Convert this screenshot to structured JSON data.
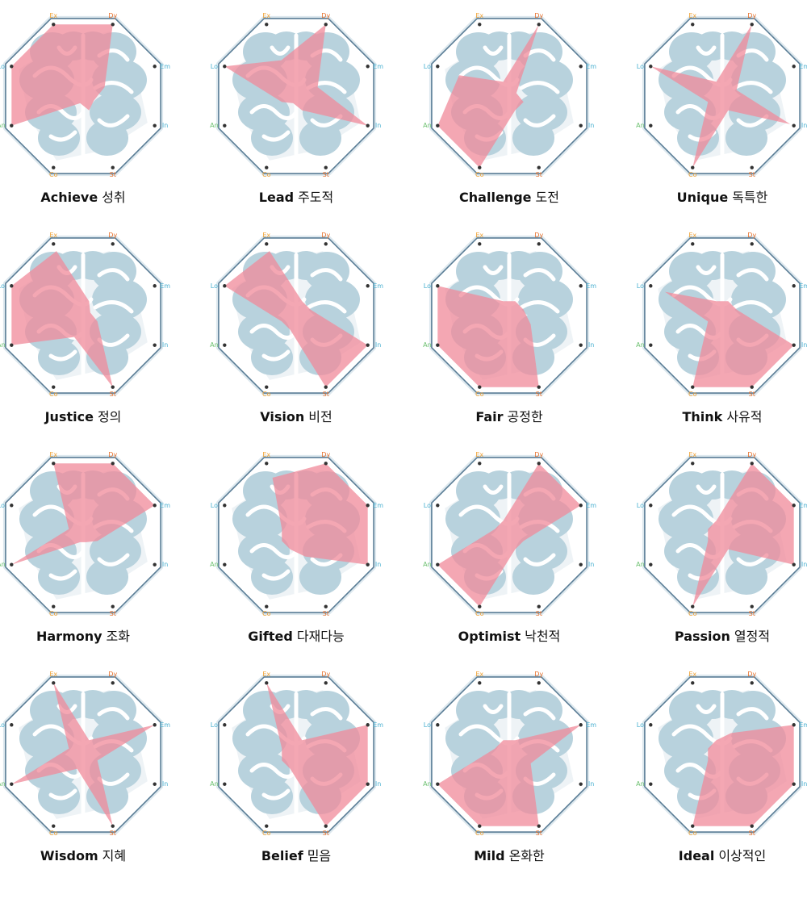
{
  "chart_data": [
    {
      "type": "radar",
      "title": "Achieve",
      "subtitle": "성취",
      "categories": [
        "Ex",
        "Dy",
        "Em",
        "In",
        "St",
        "Co",
        "An",
        "Lo"
      ],
      "category_colors": [
        "#f0a030",
        "#e8702a",
        "#4ab0d0",
        "#4ab0d0",
        "#e8702a",
        "#f0a030",
        "#6cc070",
        "#4ab0d0"
      ],
      "rlim": [
        0,
        1
      ],
      "color": "#f08a9a",
      "values": [
        1,
        1,
        0.3,
        0.15,
        0.2,
        0.1,
        1,
        1
      ]
    },
    {
      "type": "radar",
      "title": "Lead",
      "subtitle": "주도적",
      "categories": [
        "Ex",
        "Dy",
        "Em",
        "In",
        "St",
        "Co",
        "An",
        "Lo"
      ],
      "category_colors": [
        "#f0a030",
        "#e8702a",
        "#4ab0d0",
        "#4ab0d0",
        "#e8702a",
        "#f0a030",
        "#6cc070",
        "#4ab0d0"
      ],
      "rlim": [
        0,
        1
      ],
      "color": "#f08a9a",
      "values": [
        0.5,
        1,
        0.3,
        1,
        0.2,
        0.1,
        0.2,
        1
      ]
    },
    {
      "type": "radar",
      "title": "Challenge",
      "subtitle": "도전",
      "categories": [
        "Ex",
        "Dy",
        "Em",
        "In",
        "St",
        "Co",
        "An",
        "Lo"
      ],
      "category_colors": [
        "#f0a030",
        "#e8702a",
        "#4ab0d0",
        "#4ab0d0",
        "#e8702a",
        "#f0a030",
        "#6cc070",
        "#4ab0d0"
      ],
      "rlim": [
        0,
        1
      ],
      "color": "#f08a9a",
      "values": [
        0.2,
        1,
        0.1,
        0.2,
        0.2,
        1,
        1,
        0.7
      ]
    },
    {
      "type": "radar",
      "title": "Unique",
      "subtitle": "독특한",
      "categories": [
        "Ex",
        "Dy",
        "Em",
        "In",
        "St",
        "Co",
        "An",
        "Lo"
      ],
      "category_colors": [
        "#f0a030",
        "#e8702a",
        "#4ab0d0",
        "#4ab0d0",
        "#e8702a",
        "#f0a030",
        "#6cc070",
        "#4ab0d0"
      ],
      "rlim": [
        0,
        1
      ],
      "color": "#f08a9a",
      "values": [
        0.2,
        1,
        0.2,
        0.95,
        0.2,
        1,
        0.2,
        1
      ]
    },
    {
      "type": "radar",
      "title": "Justice",
      "subtitle": "정의",
      "categories": [
        "Ex",
        "Dy",
        "Em",
        "In",
        "St",
        "Co",
        "An",
        "Lo"
      ],
      "category_colors": [
        "#f0a030",
        "#e8702a",
        "#4ab0d0",
        "#4ab0d0",
        "#e8702a",
        "#f0a030",
        "#6cc070",
        "#4ab0d0"
      ],
      "rlim": [
        0,
        1
      ],
      "color": "#f08a9a",
      "values": [
        0.9,
        0.2,
        0.1,
        0.2,
        1,
        0.3,
        1,
        1
      ]
    },
    {
      "type": "radar",
      "title": "Vision",
      "subtitle": "비전",
      "categories": [
        "Ex",
        "Dy",
        "Em",
        "In",
        "St",
        "Co",
        "An",
        "Lo"
      ],
      "category_colors": [
        "#f0a030",
        "#e8702a",
        "#4ab0d0",
        "#4ab0d0",
        "#e8702a",
        "#f0a030",
        "#6cc070",
        "#4ab0d0"
      ],
      "rlim": [
        0,
        1
      ],
      "color": "#f08a9a",
      "values": [
        0.9,
        0.2,
        0.2,
        1,
        1,
        0.2,
        0.2,
        1
      ]
    },
    {
      "type": "radar",
      "title": "Fair",
      "subtitle": "공정한",
      "categories": [
        "Ex",
        "Dy",
        "Em",
        "In",
        "St",
        "Co",
        "An",
        "Lo"
      ],
      "category_colors": [
        "#f0a030",
        "#e8702a",
        "#4ab0d0",
        "#4ab0d0",
        "#e8702a",
        "#f0a030",
        "#6cc070",
        "#4ab0d0"
      ],
      "rlim": [
        0,
        1
      ],
      "color": "#f08a9a",
      "values": [
        0.2,
        0.2,
        0.2,
        0.3,
        1,
        1,
        1,
        1
      ]
    },
    {
      "type": "radar",
      "title": "Think",
      "subtitle": "사유적",
      "categories": [
        "Ex",
        "Dy",
        "Em",
        "In",
        "St",
        "Co",
        "An",
        "Lo"
      ],
      "category_colors": [
        "#f0a030",
        "#e8702a",
        "#4ab0d0",
        "#4ab0d0",
        "#e8702a",
        "#f0a030",
        "#6cc070",
        "#4ab0d0"
      ],
      "rlim": [
        0,
        1
      ],
      "color": "#f08a9a",
      "values": [
        0.2,
        0.2,
        0.2,
        1,
        1,
        1,
        0.2,
        0.8
      ]
    },
    {
      "type": "radar",
      "title": "Harmony",
      "subtitle": "조화",
      "categories": [
        "Ex",
        "Dy",
        "Em",
        "In",
        "St",
        "Co",
        "An",
        "Lo"
      ],
      "category_colors": [
        "#f0a030",
        "#e8702a",
        "#4ab0d0",
        "#4ab0d0",
        "#e8702a",
        "#f0a030",
        "#6cc070",
        "#4ab0d0"
      ],
      "rlim": [
        0,
        1
      ],
      "color": "#f08a9a",
      "values": [
        1,
        1,
        1,
        0.2,
        0.1,
        0.1,
        1,
        0.2
      ]
    },
    {
      "type": "radar",
      "title": "Gifted",
      "subtitle": "다재다능",
      "categories": [
        "Ex",
        "Dy",
        "Em",
        "In",
        "St",
        "Co",
        "An",
        "Lo"
      ],
      "category_colors": [
        "#f0a030",
        "#e8702a",
        "#4ab0d0",
        "#4ab0d0",
        "#e8702a",
        "#f0a030",
        "#6cc070",
        "#4ab0d0"
      ],
      "rlim": [
        0,
        1
      ],
      "color": "#f08a9a",
      "values": [
        0.8,
        1,
        1,
        1,
        0.3,
        0.2,
        0.2,
        0.2
      ]
    },
    {
      "type": "radar",
      "title": "Optimist",
      "subtitle": "낙천적",
      "categories": [
        "Ex",
        "Dy",
        "Em",
        "In",
        "St",
        "Co",
        "An",
        "Lo"
      ],
      "category_colors": [
        "#f0a030",
        "#e8702a",
        "#4ab0d0",
        "#4ab0d0",
        "#e8702a",
        "#f0a030",
        "#6cc070",
        "#4ab0d0"
      ],
      "rlim": [
        0,
        1
      ],
      "color": "#f08a9a",
      "values": [
        0.2,
        1,
        1,
        0.2,
        0.2,
        1,
        1,
        0.2
      ]
    },
    {
      "type": "radar",
      "title": "Passion",
      "subtitle": "열정적",
      "categories": [
        "Ex",
        "Dy",
        "Em",
        "In",
        "St",
        "Co",
        "An",
        "Lo"
      ],
      "category_colors": [
        "#f0a030",
        "#e8702a",
        "#4ab0d0",
        "#4ab0d0",
        "#e8702a",
        "#f0a030",
        "#6cc070",
        "#4ab0d0"
      ],
      "rlim": [
        0,
        1
      ],
      "color": "#f08a9a",
      "values": [
        0.2,
        1,
        1,
        1,
        0.2,
        1,
        0.2,
        0.2
      ]
    },
    {
      "type": "radar",
      "title": "Wisdom",
      "subtitle": "지혜",
      "categories": [
        "Ex",
        "Dy",
        "Em",
        "In",
        "St",
        "Co",
        "An",
        "Lo"
      ],
      "category_colors": [
        "#f0a030",
        "#e8702a",
        "#4ab0d0",
        "#4ab0d0",
        "#e8702a",
        "#f0a030",
        "#6cc070",
        "#4ab0d0"
      ],
      "rlim": [
        0,
        1
      ],
      "color": "#f08a9a",
      "values": [
        1,
        0.2,
        1,
        0.2,
        1,
        0.2,
        1,
        0.2
      ]
    },
    {
      "type": "radar",
      "title": "Belief",
      "subtitle": "믿음",
      "categories": [
        "Ex",
        "Dy",
        "Em",
        "In",
        "St",
        "Co",
        "An",
        "Lo"
      ],
      "category_colors": [
        "#f0a030",
        "#e8702a",
        "#4ab0d0",
        "#4ab0d0",
        "#e8702a",
        "#f0a030",
        "#6cc070",
        "#4ab0d0"
      ],
      "rlim": [
        0,
        1
      ],
      "color": "#f08a9a",
      "values": [
        1,
        0.2,
        1,
        1,
        1,
        0.2,
        0.2,
        0.2
      ]
    },
    {
      "type": "radar",
      "title": "Mild",
      "subtitle": "온화한",
      "categories": [
        "Ex",
        "Dy",
        "Em",
        "In",
        "St",
        "Co",
        "An",
        "Lo"
      ],
      "category_colors": [
        "#f0a030",
        "#e8702a",
        "#4ab0d0",
        "#4ab0d0",
        "#e8702a",
        "#f0a030",
        "#6cc070",
        "#4ab0d0"
      ],
      "rlim": [
        0,
        1
      ],
      "color": "#f08a9a",
      "values": [
        0.2,
        0.2,
        1,
        0.3,
        1,
        1,
        1,
        0.2
      ]
    },
    {
      "type": "radar",
      "title": "Ideal",
      "subtitle": "이상적인",
      "categories": [
        "Ex",
        "Dy",
        "Em",
        "In",
        "St",
        "Co",
        "An",
        "Lo"
      ],
      "category_colors": [
        "#f0a030",
        "#e8702a",
        "#4ab0d0",
        "#4ab0d0",
        "#e8702a",
        "#f0a030",
        "#6cc070",
        "#4ab0d0"
      ],
      "rlim": [
        0,
        1
      ],
      "color": "#f08a9a",
      "values": [
        0.2,
        0.3,
        1,
        1,
        1,
        1,
        0.2,
        0.2
      ]
    }
  ]
}
